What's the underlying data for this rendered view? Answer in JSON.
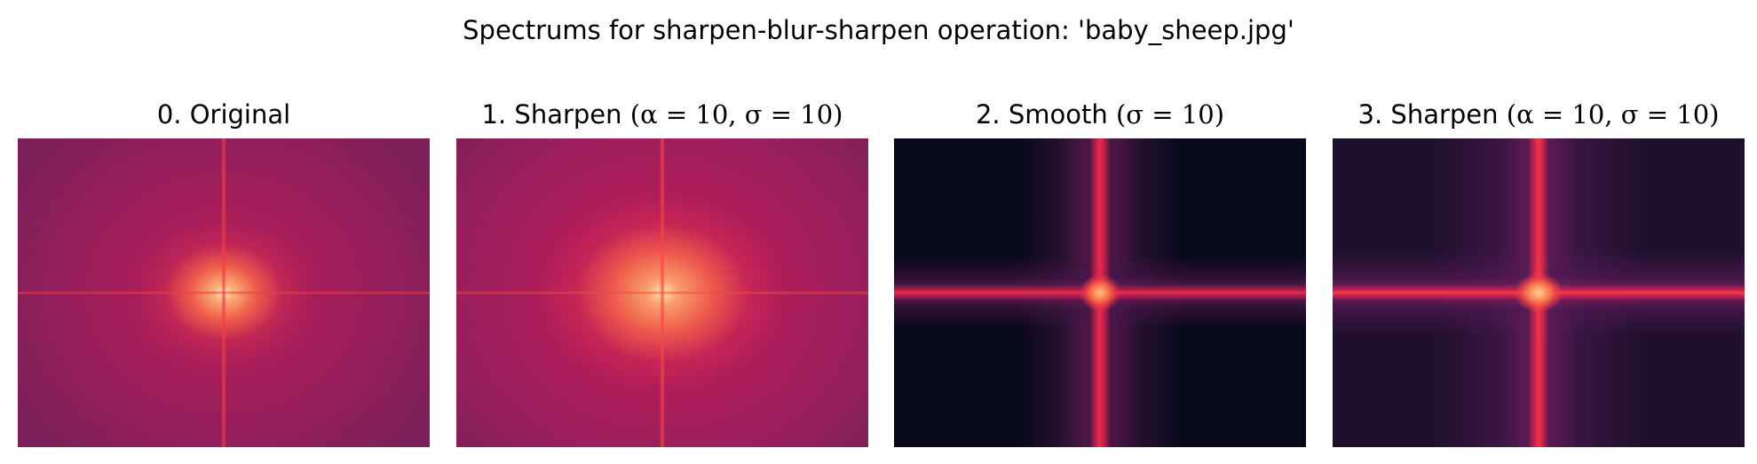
{
  "figure": {
    "suptitle": "Spectrums for sharpen-blur-sharpen operation: 'baby_sheep.jpg'"
  },
  "panels": [
    {
      "prefix": "0. Original",
      "math": ""
    },
    {
      "prefix": "1. Sharpen ",
      "math": "(α = 10, σ = 10)"
    },
    {
      "prefix": "2. Smooth ",
      "math": "(σ = 10)"
    },
    {
      "prefix": "3. Sharpen ",
      "math": "(α = 10, σ = 10)"
    }
  ],
  "colors": {
    "colormap": "rocket",
    "low": "#070818",
    "mid": "#a51d5a",
    "high": "#fff2c4"
  }
}
